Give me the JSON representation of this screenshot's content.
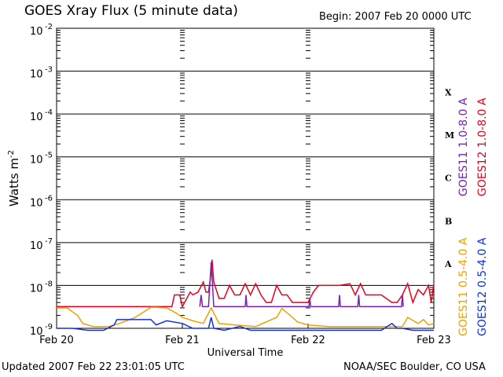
{
  "title": "GOES Xray Flux (5 minute data)",
  "begin": "Begin:  2007 Feb 20 0000 UTC",
  "updated": "Updated 2007 Feb 22 23:01:05 UTC",
  "credit": "NOAA/SEC Boulder, CO USA",
  "colors": {
    "goes11_long": "#7b1fb5",
    "goes12_long": "#e8001c",
    "goes11_short": "#f0a000",
    "goes12_short": "#1030d8"
  },
  "chart_data": {
    "type": "line",
    "title": "GOES Xray Flux (5 minute data)",
    "xlabel": "Universal Time",
    "ylabel": "Watts m^-2",
    "yscale": "log",
    "ylim": [
      1e-09,
      0.01
    ],
    "xlim": [
      "2007-02-20 00:00",
      "2007-02-23 00:00"
    ],
    "x_ticks": [
      "Feb 20",
      "Feb 21",
      "Feb 22",
      "Feb 23"
    ],
    "y_ticks": [
      "10",
      "10",
      "10",
      "10",
      "10",
      "10",
      "10",
      "10"
    ],
    "y_tick_exponents": [
      "-2",
      "-3",
      "-4",
      "-5",
      "-6",
      "-7",
      "-8",
      "-9"
    ],
    "y_tick_values": [
      0.01,
      0.001,
      0.0001,
      1e-05,
      1e-06,
      1e-07,
      1e-08,
      1e-09
    ],
    "flare_classes": [
      {
        "label": "X",
        "value": 0.00032
      },
      {
        "label": "M",
        "value": 3.2e-05
      },
      {
        "label": "C",
        "value": 3.2e-06
      },
      {
        "label": "B",
        "value": 3.2e-07
      },
      {
        "label": "A",
        "value": 3.2e-08
      }
    ],
    "legend": [
      "GOES11 1.0-8.0 A",
      "GOES12 1.0-8.0 A",
      "GOES11 0.5-4.0 A",
      "GOES12 0.5-4.0 A"
    ],
    "grid": "horizontal lines at each decade",
    "series": [
      {
        "name": "GOES12 1.0-8.0 A",
        "color": "#e8001c",
        "x": [
          "2007-02-20 00:00",
          "2007-02-20 12:00",
          "2007-02-20 22:00",
          "2007-02-20 22:30",
          "2007-02-20 23:30",
          "2007-02-21 00:00",
          "2007-02-21 01:30",
          "2007-02-21 02:00",
          "2007-02-21 03:00",
          "2007-02-21 04:00",
          "2007-02-21 04:30",
          "2007-02-21 05:00",
          "2007-02-21 05:20",
          "2007-02-21 05:40",
          "2007-02-21 06:00",
          "2007-02-21 07:00",
          "2007-02-21 08:00",
          "2007-02-21 09:00",
          "2007-02-21 10:00",
          "2007-02-21 11:00",
          "2007-02-21 12:00",
          "2007-02-21 13:00",
          "2007-02-21 14:00",
          "2007-02-21 15:00",
          "2007-02-21 16:00",
          "2007-02-21 17:00",
          "2007-02-21 18:00",
          "2007-02-21 19:00",
          "2007-02-21 20:00",
          "2007-02-21 21:00",
          "2007-02-21 22:00",
          "2007-02-22 00:00",
          "2007-02-22 01:00",
          "2007-02-22 02:00",
          "2007-02-22 04:00",
          "2007-02-22 06:00",
          "2007-02-22 08:00",
          "2007-02-22 09:00",
          "2007-02-22 10:00",
          "2007-02-22 11:00",
          "2007-02-22 12:00",
          "2007-02-22 14:00",
          "2007-02-22 16:00",
          "2007-02-22 17:00",
          "2007-02-22 18:00",
          "2007-02-22 19:00",
          "2007-02-22 20:00",
          "2007-02-22 21:00",
          "2007-02-22 22:00",
          "2007-02-22 23:00",
          "2007-02-22 23:30",
          "2007-02-23 00:00"
        ],
        "values": [
          3.2e-09,
          3.2e-09,
          3.2e-09,
          6e-09,
          6e-09,
          3.2e-09,
          7e-09,
          6e-09,
          7e-09,
          1.2e-08,
          7e-09,
          7e-09,
          1.4e-08,
          4e-08,
          1.2e-08,
          5e-09,
          5e-09,
          1e-08,
          6e-09,
          6e-09,
          1.1e-08,
          6e-09,
          1.1e-08,
          6e-09,
          4e-09,
          4e-09,
          1e-08,
          6e-09,
          6e-09,
          4e-09,
          4e-09,
          4e-09,
          7e-09,
          1e-08,
          1e-08,
          1e-08,
          1.1e-08,
          6e-09,
          1.1e-08,
          6e-09,
          6e-09,
          6e-09,
          4e-09,
          4e-09,
          6e-09,
          1.1e-08,
          4e-09,
          8e-09,
          6e-09,
          1e-08,
          4e-09,
          1.1e-08
        ]
      },
      {
        "name": "GOES11 1.0-8.0 A",
        "color": "#7b1fb5",
        "x": [
          "2007-02-21 03:20",
          "2007-02-21 03:35",
          "2007-02-21 03:50",
          "2007-02-21 05:00",
          "2007-02-21 05:30",
          "2007-02-21 06:00",
          "2007-02-21 12:00",
          "2007-02-21 12:10",
          "2007-02-21 12:20",
          "2007-02-22 00:10",
          "2007-02-22 00:20",
          "2007-02-22 00:30",
          "2007-02-22 05:50",
          "2007-02-22 06:00",
          "2007-02-22 06:10",
          "2007-02-22 09:30",
          "2007-02-22 09:40",
          "2007-02-22 09:50",
          "2007-02-22 17:50",
          "2007-02-22 18:00",
          "2007-02-22 18:10"
        ],
        "values": [
          3.2e-09,
          6e-09,
          3.2e-09,
          3.2e-09,
          3.5e-08,
          3.2e-09,
          3.2e-09,
          6e-09,
          3.2e-09,
          3.2e-09,
          5e-09,
          3.2e-09,
          3.2e-09,
          6e-09,
          3.2e-09,
          3.2e-09,
          6e-09,
          3.2e-09,
          3.2e-09,
          6e-09,
          3.2e-09
        ]
      },
      {
        "name": "GOES11 0.5-4.0 A",
        "color": "#f0a000",
        "x": [
          "2007-02-20 00:00",
          "2007-02-20 02:00",
          "2007-02-20 04:00",
          "2007-02-20 05:00",
          "2007-02-20 07:00",
          "2007-02-20 10:00",
          "2007-02-20 12:00",
          "2007-02-20 15:00",
          "2007-02-20 18:00",
          "2007-02-20 19:00",
          "2007-02-20 21:00",
          "2007-02-20 23:00",
          "2007-02-21 00:00",
          "2007-02-21 02:00",
          "2007-02-21 04:00",
          "2007-02-21 05:30",
          "2007-02-21 07:00",
          "2007-02-21 10:00",
          "2007-02-21 14:00",
          "2007-02-21 18:00",
          "2007-02-21 19:00",
          "2007-02-21 20:00",
          "2007-02-21 22:00",
          "2007-02-22 00:00",
          "2007-02-22 04:00",
          "2007-02-22 10:00",
          "2007-02-22 16:00",
          "2007-02-22 17:00",
          "2007-02-22 18:00",
          "2007-02-22 19:00",
          "2007-02-22 21:00",
          "2007-02-22 22:00",
          "2007-02-22 23:00",
          "2007-02-23 00:00"
        ],
        "values": [
          3e-09,
          3e-09,
          2e-09,
          1.3e-09,
          1.1e-09,
          1.1e-09,
          1.3e-09,
          1.8e-09,
          3.1e-09,
          3.1e-09,
          3e-09,
          2.2e-09,
          1.8e-09,
          1.5e-09,
          1.3e-09,
          3e-09,
          1.3e-09,
          1.2e-09,
          1.1e-09,
          1.8e-09,
          2.9e-09,
          2.3e-09,
          1.4e-09,
          1.2e-09,
          1.1e-09,
          1.1e-09,
          1.1e-09,
          1.1e-09,
          1.1e-09,
          1.8e-09,
          1.3e-09,
          1.6e-09,
          1.2e-09,
          1.3e-09
        ]
      },
      {
        "name": "GOES12 0.5-4.0 A",
        "color": "#1030d8",
        "x": [
          "2007-02-20 00:00",
          "2007-02-20 03:00",
          "2007-02-20 06:00",
          "2007-02-20 09:00",
          "2007-02-20 11:00",
          "2007-02-20 11:30",
          "2007-02-20 15:00",
          "2007-02-20 18:00",
          "2007-02-20 19:00",
          "2007-02-20 21:00",
          "2007-02-21 00:00",
          "2007-02-21 02:00",
          "2007-02-21 05:00",
          "2007-02-21 05:30",
          "2007-02-21 06:00",
          "2007-02-21 08:00",
          "2007-02-21 11:00",
          "2007-02-21 13:00",
          "2007-02-21 16:00",
          "2007-02-21 20:00",
          "2007-02-22 00:00",
          "2007-02-22 05:00",
          "2007-02-22 08:00",
          "2007-02-22 10:00",
          "2007-02-22 14:00",
          "2007-02-22 16:00",
          "2007-02-22 17:00",
          "2007-02-22 18:00",
          "2007-02-22 20:00",
          "2007-02-22 22:00",
          "2007-02-23 00:00"
        ],
        "values": [
          1e-09,
          1e-09,
          9e-10,
          9e-10,
          1.2e-09,
          1.6e-09,
          1.6e-09,
          1.6e-09,
          1.2e-09,
          1.5e-09,
          1.3e-09,
          1e-09,
          1e-09,
          1.8e-09,
          1e-09,
          9e-10,
          1.1e-09,
          9e-10,
          9e-10,
          9e-10,
          9e-10,
          9e-10,
          9e-10,
          9e-10,
          9e-10,
          1.3e-09,
          1e-09,
          1e-09,
          9e-10,
          9e-10,
          9e-10
        ]
      }
    ]
  }
}
